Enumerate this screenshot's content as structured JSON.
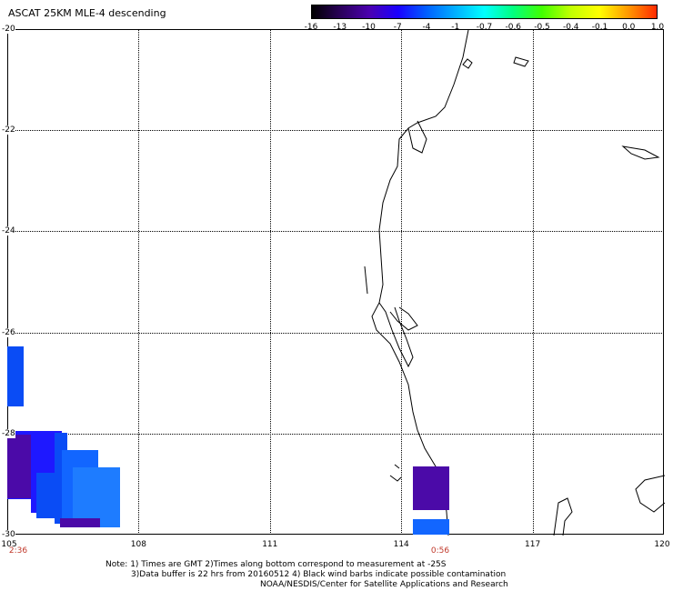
{
  "title": "ASCAT 25KM MLE-4 descending",
  "colorbar": {
    "labels": [
      "-16",
      "-13",
      "-10",
      "-7",
      "-4",
      "-1",
      "-0.7",
      "-0.6",
      "-0.5",
      "-0.4",
      "-0.1",
      "0.0",
      "1.0"
    ],
    "colors": [
      "#000000",
      "#2a005a",
      "#4b00b0",
      "#1a00ff",
      "#0060ff",
      "#00b0ff",
      "#00ffff",
      "#00ff80",
      "#40ff00",
      "#c0ff00",
      "#ffff00",
      "#ff9900",
      "#ff2a00"
    ]
  },
  "map": {
    "lat_labels": [
      "-20",
      "-22",
      "-24",
      "-26",
      "-28",
      "-30"
    ],
    "lon_labels": [
      "105",
      "108",
      "111",
      "114",
      "117",
      "120"
    ],
    "time_labels": [
      "2:36",
      "0:56"
    ],
    "swath_colors": {
      "dark_purple": "#4b0aa8",
      "deep_blue": "#1e18ff",
      "blue": "#0a4cf5",
      "light_blue": "#1266ff",
      "sky_blue": "#1e7cff"
    }
  },
  "notes": [
    "Note: 1) Times are GMT 2)Times along bottom correspond to measurement at -25S",
    "3)Data buffer is 22 hrs from 20160512 4) Black wind barbs indicate possible contamination",
    "NOAA/NESDIS/Center for Satellite Applications and Research"
  ]
}
